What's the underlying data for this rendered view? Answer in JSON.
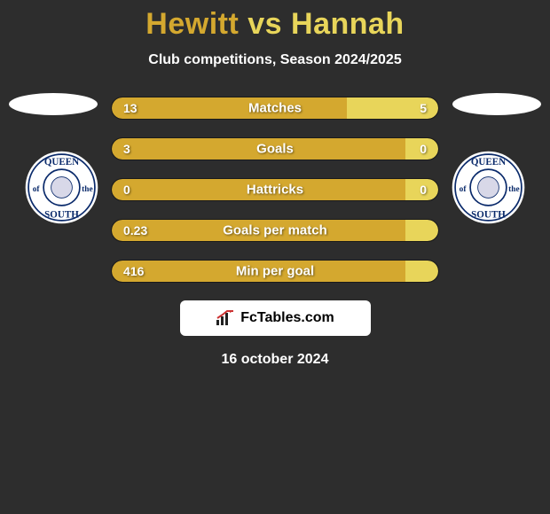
{
  "title": {
    "text": "Hewitt vs Hannah",
    "player1": "Hewitt",
    "player2": "Hannah",
    "color1": "#d4a82f",
    "color2": "#e8d55a",
    "fontsize": 34
  },
  "subtitle": "Club competitions, Season 2024/2025",
  "colors": {
    "background": "#2d2d2d",
    "text": "#ffffff",
    "bar_left": "#d4a82f",
    "bar_right": "#e8d55a",
    "track_border": "#1a1a1a"
  },
  "bars": [
    {
      "label": "Matches",
      "left_value": "13",
      "right_value": "5",
      "left_pct": 72,
      "right_pct": 28
    },
    {
      "label": "Goals",
      "left_value": "3",
      "right_value": "0",
      "left_pct": 90,
      "right_pct": 10
    },
    {
      "label": "Hattricks",
      "left_value": "0",
      "right_value": "0",
      "left_pct": 90,
      "right_pct": 10
    },
    {
      "label": "Goals per match",
      "left_value": "0.23",
      "right_value": "",
      "left_pct": 90,
      "right_pct": 10
    },
    {
      "label": "Min per goal",
      "left_value": "416",
      "right_value": "",
      "left_pct": 90,
      "right_pct": 10
    }
  ],
  "bar_style": {
    "height": 26,
    "gap": 20,
    "radius": 13,
    "label_fontsize": 15,
    "value_fontsize": 14
  },
  "club_badge": {
    "top_text": "QUEEN",
    "left_text": "of",
    "right_text": "the",
    "bottom_text": "SOUTH",
    "outer_color": "#ffffff",
    "ring_color": "#0a2a6b",
    "text_color": "#0a2a6b"
  },
  "footer": {
    "brand": "FcTables.com",
    "date": "16 october 2024"
  }
}
